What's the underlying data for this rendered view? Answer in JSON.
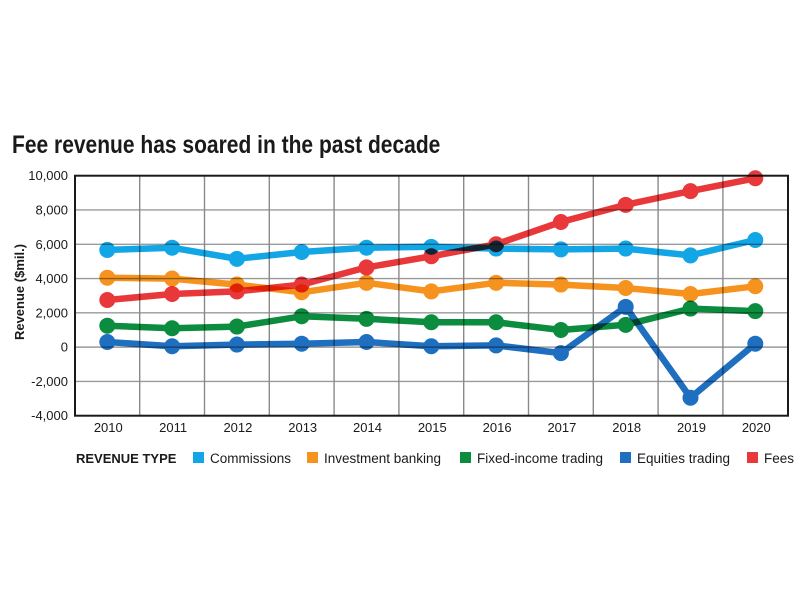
{
  "chart_data": {
    "type": "line",
    "title": "Fee revenue has soared in the past decade",
    "xlabel": "",
    "ylabel": "Revenue ($mil.)",
    "x": [
      "2010",
      "2011",
      "2012",
      "2013",
      "2014",
      "2015",
      "2016",
      "2017",
      "2018",
      "2019",
      "2020"
    ],
    "ylim": [
      -4000,
      10000
    ],
    "yticks": [
      10000,
      8000,
      6000,
      4000,
      2000,
      0,
      -2000,
      -4000
    ],
    "ytick_labels": [
      "10,000",
      "8,000",
      "6,000",
      "4,000",
      "2,000",
      "0",
      "-2,000",
      "-4,000"
    ],
    "grid": true,
    "legend_title": "REVENUE TYPE",
    "legend_position": "bottom",
    "series": [
      {
        "name": "Commissions",
        "color": "#12a6e6",
        "values": [
          5670,
          5800,
          5150,
          5550,
          5800,
          5850,
          5750,
          5700,
          5750,
          5350,
          6250
        ]
      },
      {
        "name": "Investment banking",
        "color": "#f6931f",
        "values": [
          4050,
          4000,
          3650,
          3200,
          3750,
          3250,
          3750,
          3650,
          3450,
          3100,
          3550
        ]
      },
      {
        "name": "Fixed-income trading",
        "color": "#0b8c3e",
        "values": [
          1250,
          1100,
          1200,
          1800,
          1650,
          1450,
          1450,
          1000,
          1300,
          2250,
          2100
        ]
      },
      {
        "name": "Equities trading",
        "color": "#1e6fc0",
        "values": [
          300,
          50,
          150,
          200,
          300,
          50,
          100,
          -350,
          2350,
          -2950,
          200
        ]
      },
      {
        "name": "Fees",
        "color": "#e8383a",
        "values": [
          2750,
          3100,
          3250,
          3650,
          4650,
          5300,
          6000,
          7300,
          8300,
          9100,
          9850
        ]
      }
    ]
  }
}
